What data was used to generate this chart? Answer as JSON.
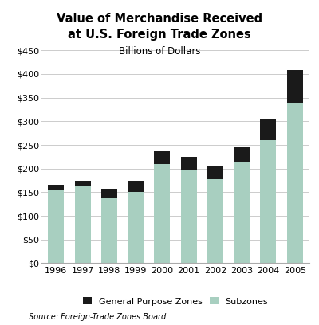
{
  "title_line1": "Value of Merchandise Received",
  "title_line2": "at U.S. Foreign Trade Zones",
  "subtitle": "Billions of Dollars",
  "source": "Source: Foreign-Trade Zones Board",
  "years": [
    "1996",
    "1997",
    "1998",
    "1999",
    "2000",
    "2001",
    "2002",
    "2003",
    "2004",
    "2005"
  ],
  "subzones": [
    155,
    163,
    138,
    150,
    210,
    196,
    178,
    213,
    260,
    340
  ],
  "gpz": [
    10,
    12,
    19,
    25,
    28,
    29,
    28,
    34,
    44,
    68
  ],
  "subzone_color": "#a8cfc0",
  "gpz_color": "#1a1a1a",
  "background_color": "#ffffff",
  "ylim": [
    0,
    450
  ],
  "yticks": [
    0,
    50,
    100,
    150,
    200,
    250,
    300,
    350,
    400,
    450
  ],
  "grid_color": "#cccccc",
  "bar_width": 0.6
}
